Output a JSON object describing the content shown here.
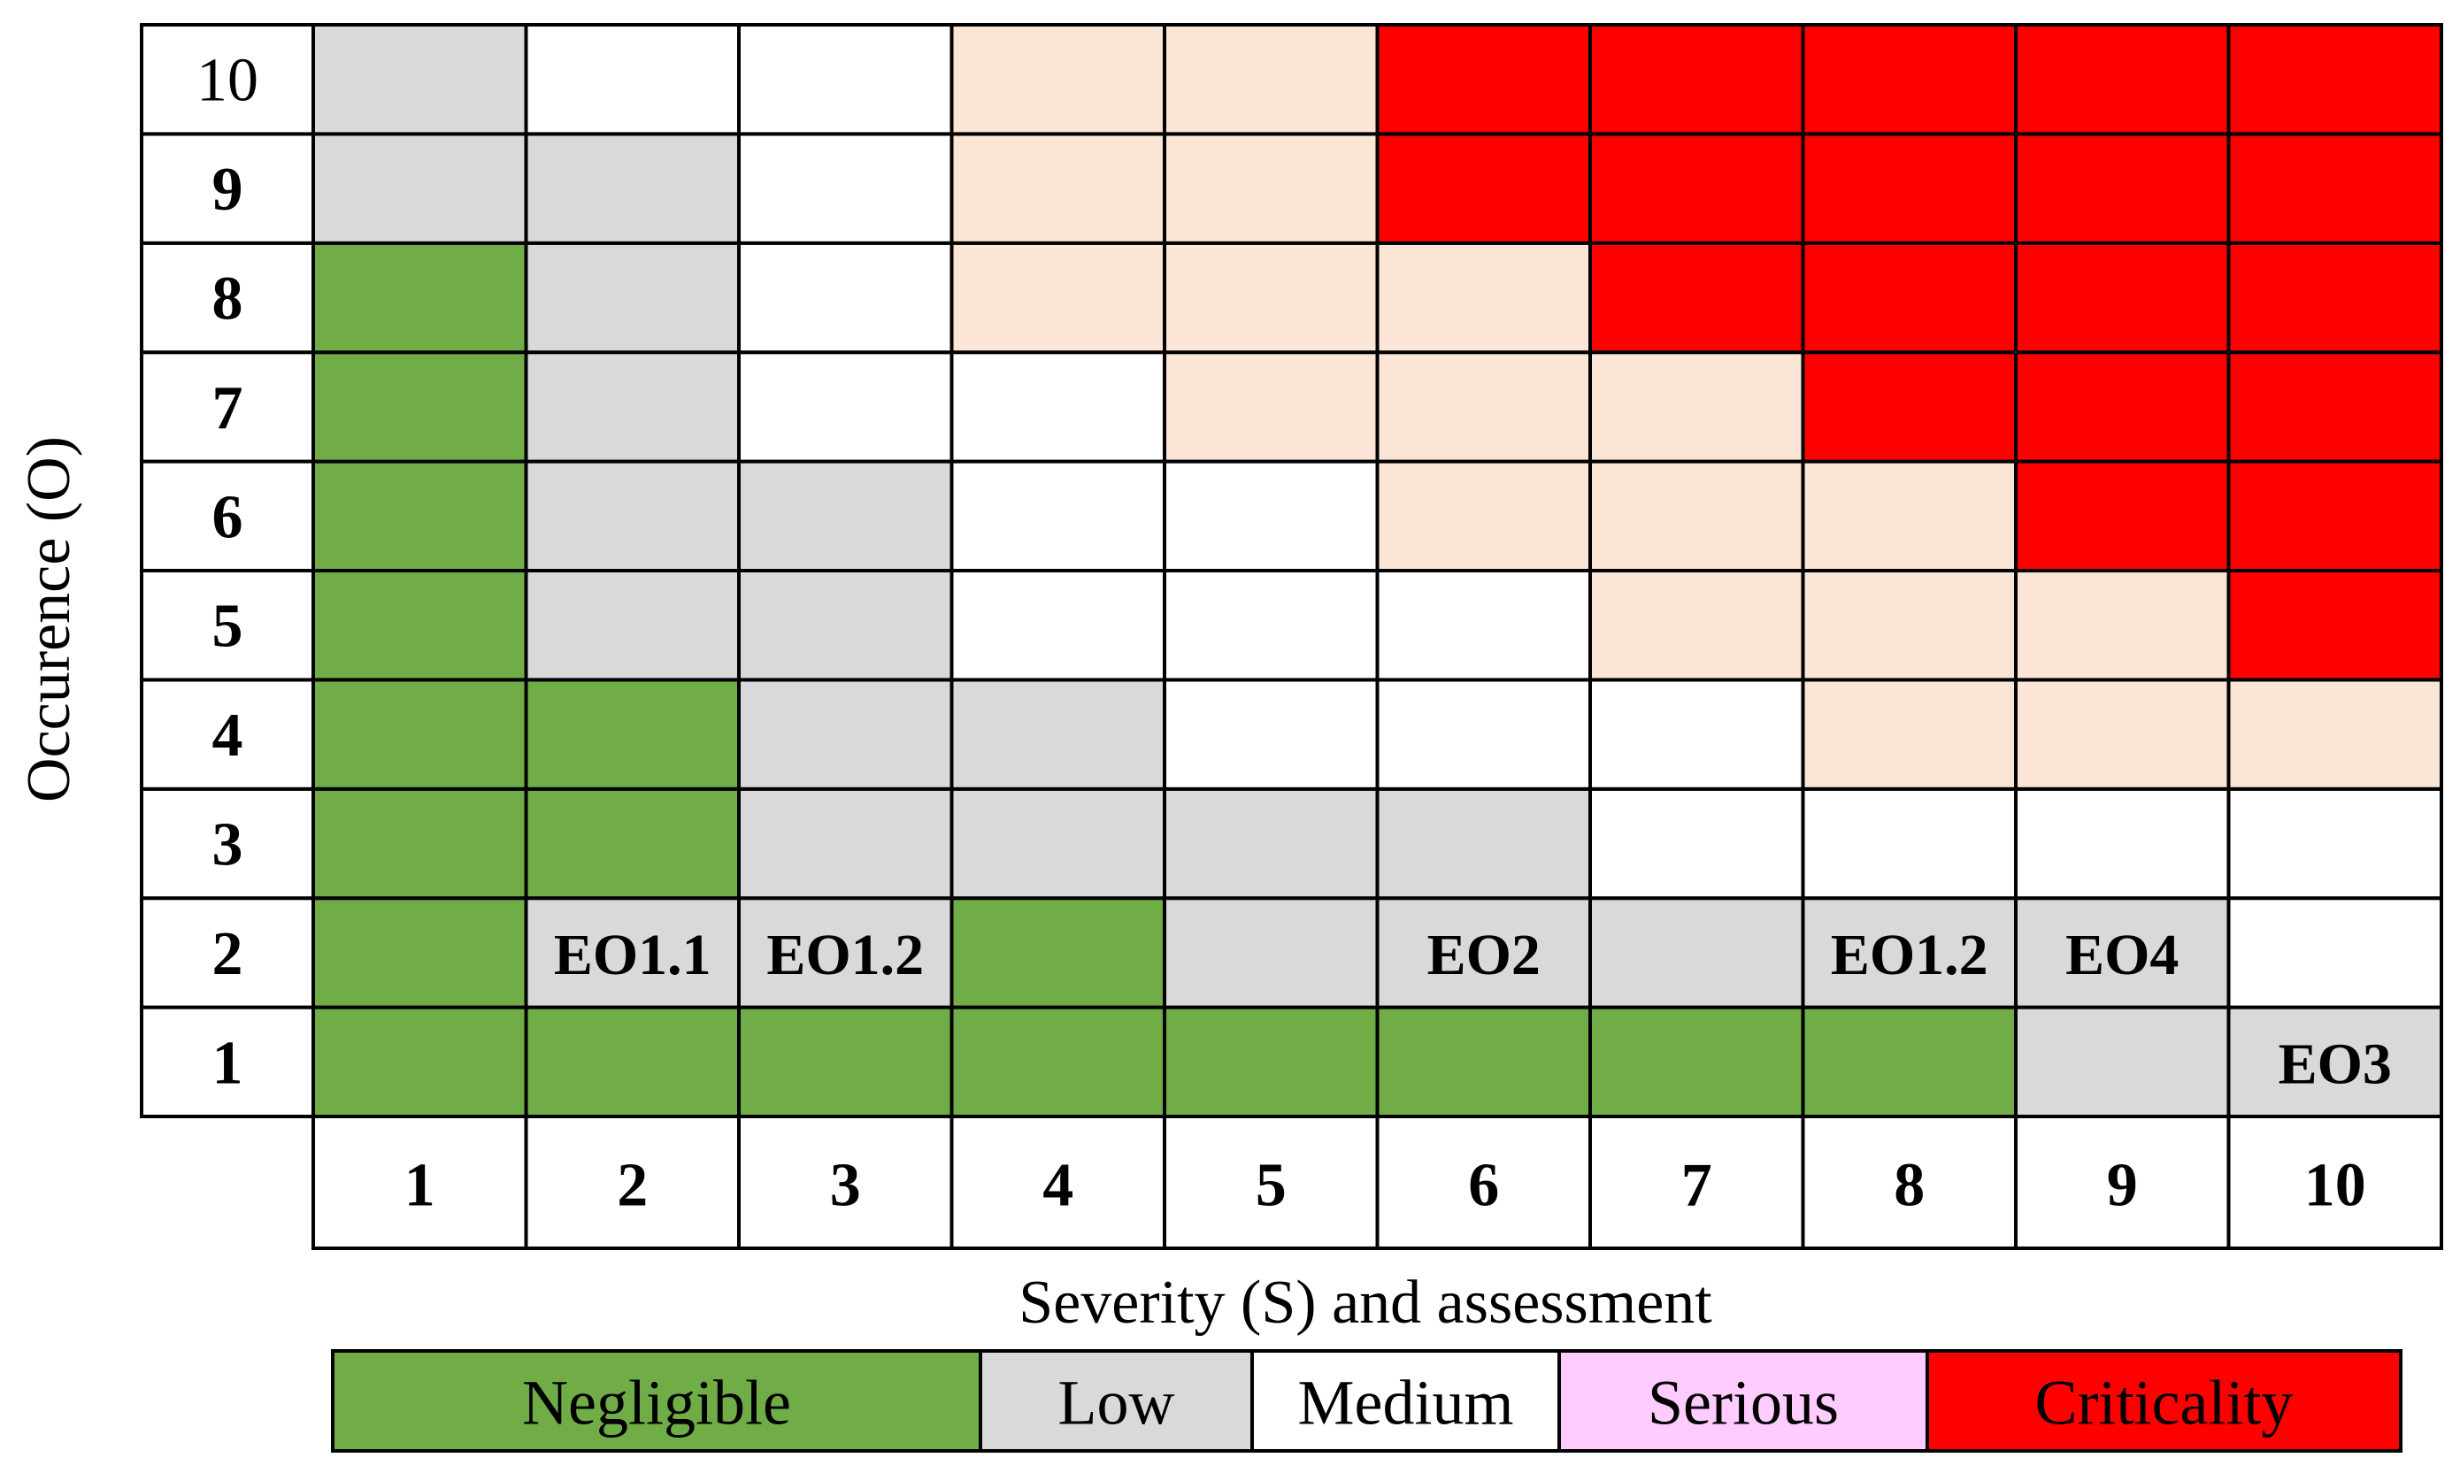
{
  "chart_data": {
    "type": "heatmap",
    "title": "",
    "xlabel": "Severity (S) and assessment",
    "ylabel": "Occurence (O)",
    "x_ticks": [
      "1",
      "2",
      "3",
      "4",
      "5",
      "6",
      "7",
      "8",
      "9",
      "10"
    ],
    "y_ticks": [
      "1",
      "2",
      "3",
      "4",
      "5",
      "6",
      "7",
      "8",
      "9",
      "10"
    ],
    "y_tick_bold": [
      true,
      true,
      true,
      true,
      true,
      true,
      true,
      true,
      true,
      false
    ],
    "levels": [
      {
        "key": "N",
        "name": "Negligible",
        "color": "#70ad47"
      },
      {
        "key": "L",
        "name": "Low",
        "color": "#d9d9d9"
      },
      {
        "key": "M",
        "name": "Medium",
        "color": "#ffffff"
      },
      {
        "key": "S",
        "name": "Serious",
        "color": "#ffccff"
      },
      {
        "key": "C",
        "name": "Criticality",
        "color": "#ff0000"
      }
    ],
    "serious_cell_color": "#fbe5d6",
    "grid": [
      [
        "N",
        "N",
        "N",
        "N",
        "N",
        "N",
        "N",
        "N",
        "L",
        "L"
      ],
      [
        "N",
        "L",
        "L",
        "N",
        "L",
        "L",
        "L",
        "L",
        "L",
        "M"
      ],
      [
        "N",
        "N",
        "L",
        "L",
        "L",
        "L",
        "M",
        "M",
        "M",
        "M"
      ],
      [
        "N",
        "N",
        "L",
        "L",
        "M",
        "M",
        "M",
        "S",
        "S",
        "S"
      ],
      [
        "N",
        "L",
        "L",
        "M",
        "M",
        "M",
        "S",
        "S",
        "S",
        "C"
      ],
      [
        "N",
        "L",
        "L",
        "M",
        "M",
        "S",
        "S",
        "S",
        "C",
        "C"
      ],
      [
        "N",
        "L",
        "M",
        "M",
        "S",
        "S",
        "S",
        "C",
        "C",
        "C"
      ],
      [
        "N",
        "L",
        "M",
        "S",
        "S",
        "S",
        "C",
        "C",
        "C",
        "C"
      ],
      [
        "L",
        "L",
        "M",
        "S",
        "S",
        "C",
        "C",
        "C",
        "C",
        "C"
      ],
      [
        "L",
        "M",
        "M",
        "S",
        "S",
        "C",
        "C",
        "C",
        "C",
        "C"
      ]
    ],
    "annotations": [
      {
        "text": "EO1.1",
        "severity": 2,
        "occurrence": 2
      },
      {
        "text": "EO1.2",
        "severity": 3,
        "occurrence": 2
      },
      {
        "text": "EO2",
        "severity": 6,
        "occurrence": 2
      },
      {
        "text": "EO1.2",
        "severity": 8,
        "occurrence": 2
      },
      {
        "text": "EO4",
        "severity": 9,
        "occurrence": 2
      },
      {
        "text": "EO3",
        "severity": 10,
        "occurrence": 1
      }
    ],
    "legend": [
      "Negligible",
      "Low",
      "Medium",
      "Serious",
      "Criticality"
    ]
  }
}
